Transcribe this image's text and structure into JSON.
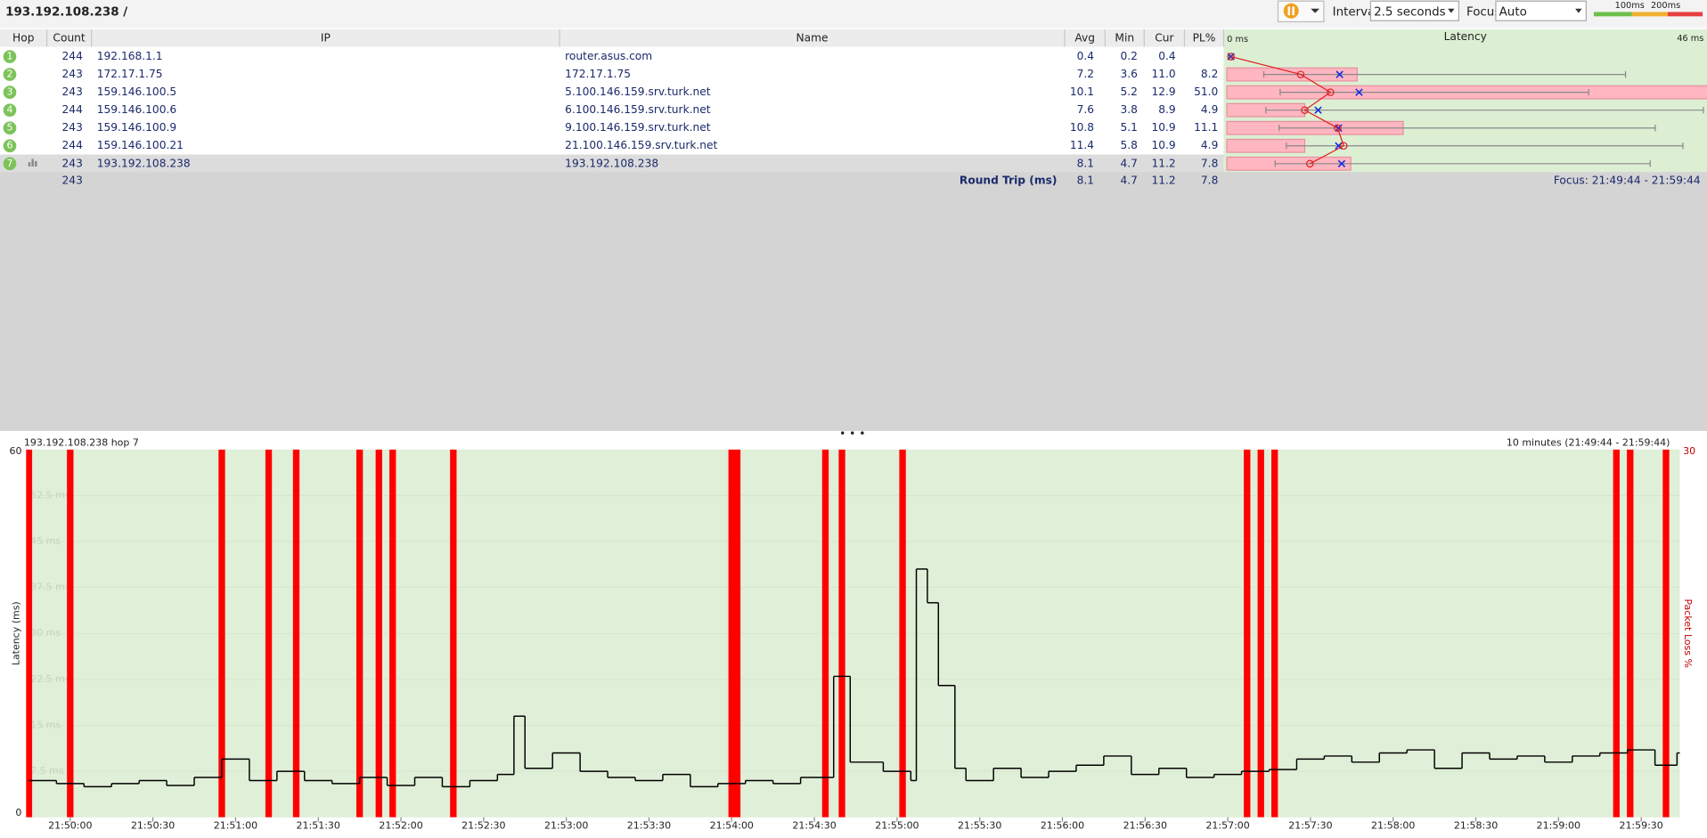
{
  "toolbar": {
    "target": "193.192.108.238 /",
    "interval_label": "Interval",
    "interval": "2.5 seconds",
    "focus_label": "Focus",
    "focus": "Auto",
    "scale_labels": [
      "100ms",
      "200ms"
    ]
  },
  "hops_table": {
    "columns": [
      "Hop",
      "Count",
      "IP",
      "Name",
      "Avg",
      "Min",
      "Cur",
      "PL%"
    ],
    "latency_header": "Latency",
    "latency_xlim": [
      0,
      46
    ],
    "latency_xticks": [
      {
        "value": 0,
        "label": "0 ms"
      },
      {
        "value": 46,
        "label": "46 ms"
      }
    ],
    "rows": [
      {
        "hop": 1,
        "count": 244,
        "ip": "192.168.1.1",
        "name": "router.asus.com",
        "avg": "0.4",
        "min": "0.2",
        "cur": "0.4",
        "pl": null,
        "max": 0.5
      },
      {
        "hop": 2,
        "count": 243,
        "ip": "172.17.1.75",
        "name": "172.17.1.75",
        "avg": "7.2",
        "min": "3.6",
        "cur": "11.0",
        "pl": "8.2",
        "max": 38.9
      },
      {
        "hop": 3,
        "count": 243,
        "ip": "159.146.100.5",
        "name": "5.100.146.159.srv.turk.net",
        "avg": "10.1",
        "min": "5.2",
        "cur": "12.9",
        "pl": "51.0",
        "max": 35.3
      },
      {
        "hop": 4,
        "count": 244,
        "ip": "159.146.100.6",
        "name": "6.100.146.159.srv.turk.net",
        "avg": "7.6",
        "min": "3.8",
        "cur": "8.9",
        "pl": "4.9",
        "max": 46.5
      },
      {
        "hop": 5,
        "count": 243,
        "ip": "159.146.100.9",
        "name": "9.100.146.159.srv.turk.net",
        "avg": "10.8",
        "min": "5.1",
        "cur": "10.9",
        "pl": "11.1",
        "max": 41.8
      },
      {
        "hop": 6,
        "count": 244,
        "ip": "159.146.100.21",
        "name": "21.100.146.159.srv.turk.net",
        "avg": "11.4",
        "min": "5.8",
        "cur": "10.9",
        "pl": "4.9",
        "max": 44.5
      },
      {
        "hop": 7,
        "count": 243,
        "ip": "193.192.108.238",
        "name": "193.192.108.238",
        "avg": "8.1",
        "min": "4.7",
        "cur": "11.2",
        "pl": "7.8",
        "max": 41.3
      }
    ],
    "summary": {
      "count": 243,
      "label": "Round Trip (ms)",
      "avg": "8.1",
      "min": "4.7",
      "cur": "11.2",
      "pl": "7.8",
      "focus": "Focus: 21:49:44 - 21:59:44"
    }
  },
  "chart_data": {
    "type": "line",
    "title": "193.192.108.238 hop 7",
    "subtitle": "10 minutes (21:49:44 - 21:59:44)",
    "ylabel": "Latency (ms)",
    "y2label": "Packet Loss %",
    "xlim": [
      "21:49:44",
      "21:59:44"
    ],
    "xticks": [
      "21:50:00",
      "21:50:30",
      "21:51:00",
      "21:51:30",
      "21:52:00",
      "21:52:30",
      "21:53:00",
      "21:53:30",
      "21:54:00",
      "21:54:30",
      "21:55:00",
      "21:55:30",
      "21:56:00",
      "21:56:30",
      "21:57:00",
      "21:57:30",
      "21:58:00",
      "21:58:30",
      "21:59:00",
      "21:59:30"
    ],
    "ylim": [
      0,
      60
    ],
    "yticks": [
      0,
      {
        "value": 7.5,
        "label": "7.5 ms"
      },
      {
        "value": 15,
        "label": "15 ms"
      },
      {
        "value": 22.5,
        "label": "22.5 ms"
      },
      {
        "value": 30,
        "label": "30 ms"
      },
      {
        "value": 37.5,
        "label": "37.5 ms"
      },
      {
        "value": 45,
        "label": "45 ms"
      },
      {
        "value": 52.5,
        "label": "52.5 ms"
      },
      60
    ],
    "y2lim": [
      0,
      30
    ],
    "y2ticks": [
      30
    ],
    "background": "#e0efd8",
    "series": [
      {
        "color": "#000000",
        "step": true,
        "x": [
          "21:49:45",
          "21:49:55",
          "21:50:05",
          "21:50:15",
          "21:50:25",
          "21:50:35",
          "21:50:45",
          "21:50:55",
          "21:51:05",
          "21:51:15",
          "21:51:25",
          "21:51:35",
          "21:51:45",
          "21:51:55",
          "21:52:05",
          "21:52:15",
          "21:52:25",
          "21:52:35",
          "21:52:41",
          "21:52:45",
          "21:52:55",
          "21:53:05",
          "21:53:15",
          "21:53:25",
          "21:53:35",
          "21:53:45",
          "21:53:55",
          "21:54:05",
          "21:54:15",
          "21:54:25",
          "21:54:37",
          "21:54:43",
          "21:54:55",
          "21:55:05",
          "21:55:07",
          "21:55:11",
          "21:55:15",
          "21:55:21",
          "21:55:25",
          "21:55:35",
          "21:55:45",
          "21:55:55",
          "21:56:05",
          "21:56:15",
          "21:56:25",
          "21:56:35",
          "21:56:45",
          "21:56:55",
          "21:57:05",
          "21:57:15",
          "21:57:25",
          "21:57:35",
          "21:57:45",
          "21:57:55",
          "21:58:05",
          "21:58:15",
          "21:58:25",
          "21:58:35",
          "21:58:45",
          "21:58:55",
          "21:59:05",
          "21:59:15",
          "21:59:25",
          "21:59:35",
          "21:59:43"
        ],
        "values": [
          6.0,
          5.5,
          5.0,
          5.5,
          6.0,
          5.2,
          6.5,
          9.5,
          6.0,
          7.5,
          6.0,
          5.5,
          6.5,
          5.2,
          6.5,
          5.0,
          6.0,
          7.0,
          16.5,
          8.0,
          10.5,
          7.5,
          6.5,
          6.0,
          7.0,
          5.0,
          5.5,
          6.0,
          5.5,
          6.5,
          23.0,
          9.0,
          7.5,
          6.0,
          40.5,
          35.0,
          21.5,
          8.0,
          6.0,
          8.0,
          6.5,
          7.5,
          8.5,
          10.0,
          7.0,
          8.0,
          6.5,
          7.0,
          7.5,
          7.8,
          9.5,
          10.0,
          9.0,
          10.5,
          11.0,
          8.0,
          10.5,
          9.5,
          10.0,
          9.0,
          10.0,
          10.5,
          11.0,
          8.5,
          10.5
        ]
      },
      {
        "color": "#ff0000",
        "axis": "y2",
        "x": [
          "21:49:45",
          "21:50:00",
          "21:50:55",
          "21:51:12",
          "21:51:22",
          "21:51:45",
          "21:51:52",
          "21:51:57",
          "21:52:19",
          "21:54:00",
          "21:54:02",
          "21:54:34",
          "21:54:40",
          "21:55:02",
          "21:57:07",
          "21:57:12",
          "21:57:17",
          "21:59:21",
          "21:59:26",
          "21:59:39"
        ],
        "values": [
          30,
          30,
          30,
          30,
          30,
          30,
          30,
          30,
          30,
          30,
          30,
          30,
          30,
          30,
          30,
          30,
          30,
          30,
          30,
          30
        ]
      }
    ]
  }
}
